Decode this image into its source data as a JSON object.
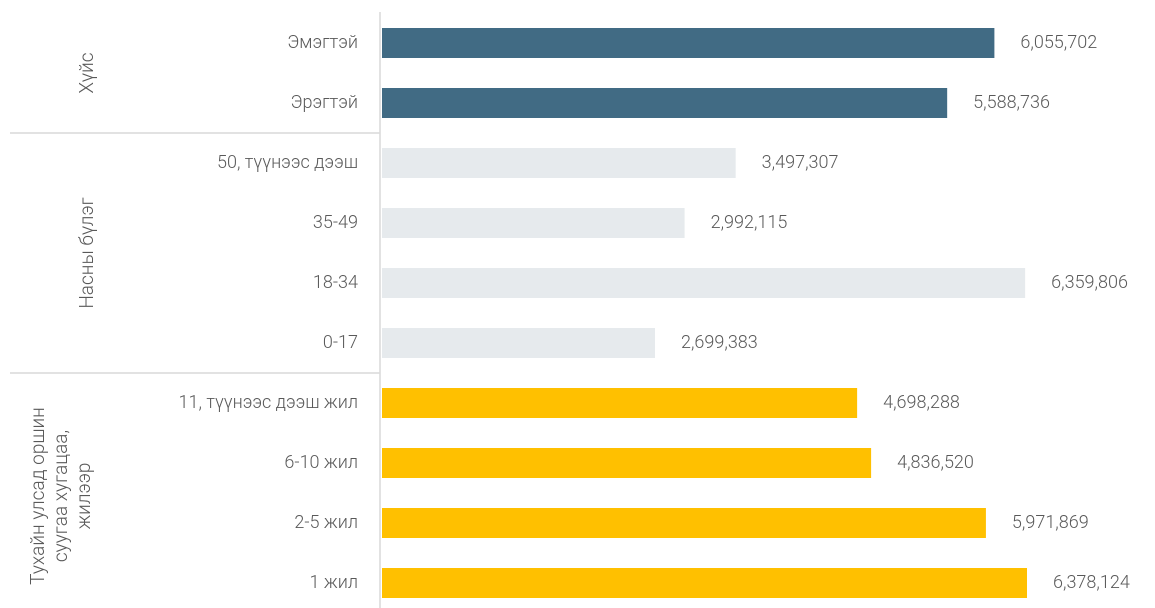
{
  "chart_data": {
    "type": "bar",
    "groups": [
      {
        "name": [
          "Хүйс"
        ],
        "color": "#416b84",
        "categories": [
          "Эмэгтэй",
          "Эрэгтэй"
        ],
        "values": [
          6055702,
          5588736
        ],
        "value_labels": [
          "6,055,702",
          "5,588,736"
        ]
      },
      {
        "name": [
          "Насны бүлэг"
        ],
        "color": "#e6eaed",
        "categories": [
          "50, түүнээс дээш",
          "35-49",
          "18-34",
          "0-17"
        ],
        "values": [
          3497307,
          2992115,
          6359806,
          2699383
        ],
        "value_labels": [
          "3,497,307",
          "2,992,115",
          "6,359,806",
          "2,699,383"
        ]
      },
      {
        "name": [
          "Тухайн улсад оршин",
          "суугаа хугацаа,",
          "жилээр"
        ],
        "color": "#ffc000",
        "categories": [
          "11, түүнээс дээш жил",
          "6-10 жил",
          "2-5 жил",
          "1  жил"
        ],
        "values": [
          4698288,
          4836520,
          5971869,
          6378124
        ],
        "value_labels": [
          "4,698,288",
          "4,836,520",
          "5,971,869",
          "6,378,124"
        ]
      }
    ]
  }
}
